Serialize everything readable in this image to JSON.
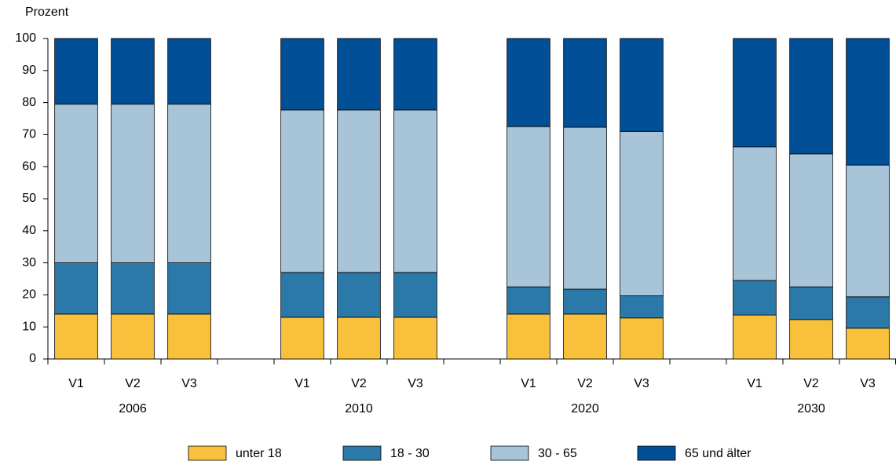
{
  "chart_data": {
    "type": "stacked_bar",
    "y_label": "Prozent",
    "categories": [
      "V1",
      "V2",
      "V3",
      null,
      "V1",
      "V2",
      "V3",
      null,
      "V1",
      "V2",
      "V3",
      null,
      "V1",
      "V2",
      "V3"
    ],
    "group_labels": [
      "2006",
      "2010",
      "2020",
      "2030"
    ],
    "series": [
      {
        "name": "unter 18",
        "color": "#f8c03b",
        "values": [
          14,
          14,
          14,
          null,
          13,
          13,
          13,
          null,
          14,
          14,
          12.8,
          null,
          13.7,
          12.3,
          9.6
        ]
      },
      {
        "name": "18 - 30",
        "color": "#2a79a8",
        "values": [
          16,
          16,
          16,
          null,
          14,
          14,
          14,
          null,
          8.5,
          7.8,
          6.9,
          null,
          10.8,
          10.2,
          9.8
        ]
      },
      {
        "name": "30 - 65",
        "color": "#a8c4d9",
        "values": [
          49.5,
          49.5,
          49.5,
          null,
          50.7,
          50.7,
          50.7,
          null,
          50,
          50.5,
          51.3,
          null,
          41.7,
          41.5,
          41.1
        ]
      },
      {
        "name": "65 und älter",
        "color": "#004f97",
        "values": [
          20.5,
          20.5,
          20.5,
          null,
          22.3,
          22.3,
          22.3,
          null,
          27.5,
          27.7,
          29,
          null,
          33.8,
          36,
          39.5
        ]
      }
    ],
    "ylim": [
      0,
      100
    ],
    "yticks": [
      0,
      10,
      20,
      30,
      40,
      50,
      60,
      70,
      80,
      90,
      100
    ],
    "grid": false
  }
}
